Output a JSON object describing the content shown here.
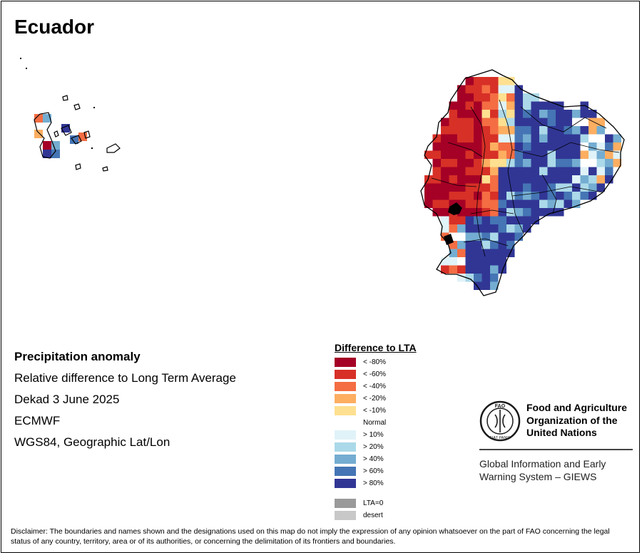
{
  "title": "Ecuador",
  "info": {
    "heading": "Precipitation anomaly",
    "subtitle": "Relative difference to Long Term Average",
    "period": "Dekad 3 June 2025",
    "source": "ECMWF",
    "projection": "WGS84, Geographic Lat/Lon"
  },
  "legend": {
    "title": "Difference to LTA",
    "items": [
      {
        "label": "< -80%",
        "color": "#a50026"
      },
      {
        "label": "< -60%",
        "color": "#d73027"
      },
      {
        "label": "< -40%",
        "color": "#f46d43"
      },
      {
        "label": "< -20%",
        "color": "#fdae61"
      },
      {
        "label": "< -10%",
        "color": "#fee090"
      },
      {
        "label": "Normal",
        "color": "#ffffff"
      },
      {
        "label": "> 10%",
        "color": "#e0f3f8"
      },
      {
        "label": "> 20%",
        "color": "#abd9e9"
      },
      {
        "label": "> 40%",
        "color": "#74add1"
      },
      {
        "label": "> 60%",
        "color": "#4575b4"
      },
      {
        "label": "> 80%",
        "color": "#313695"
      },
      {
        "label": "LTA=0",
        "color": "#9a9a9a"
      },
      {
        "label": "desert",
        "color": "#c8c8c8"
      }
    ]
  },
  "fao": {
    "name_line1": "Food and Agriculture",
    "name_line2": "Organization of the",
    "name_line3": "United Nations",
    "logo_text": "FAO",
    "logo_ring": "FIAT PANIS",
    "giews_line1": "Global Information and Early",
    "giews_line2": "Warning System – GIEWS"
  },
  "disclaimer": "Disclaimer: The boundaries and names shown and the designations used on this map do not imply the expression of any opinion whatsoever on the part of FAO concerning the legal status of any country, territory, area or of its authorities, or concerning the delimitation of its frontiers and boundaries."
}
